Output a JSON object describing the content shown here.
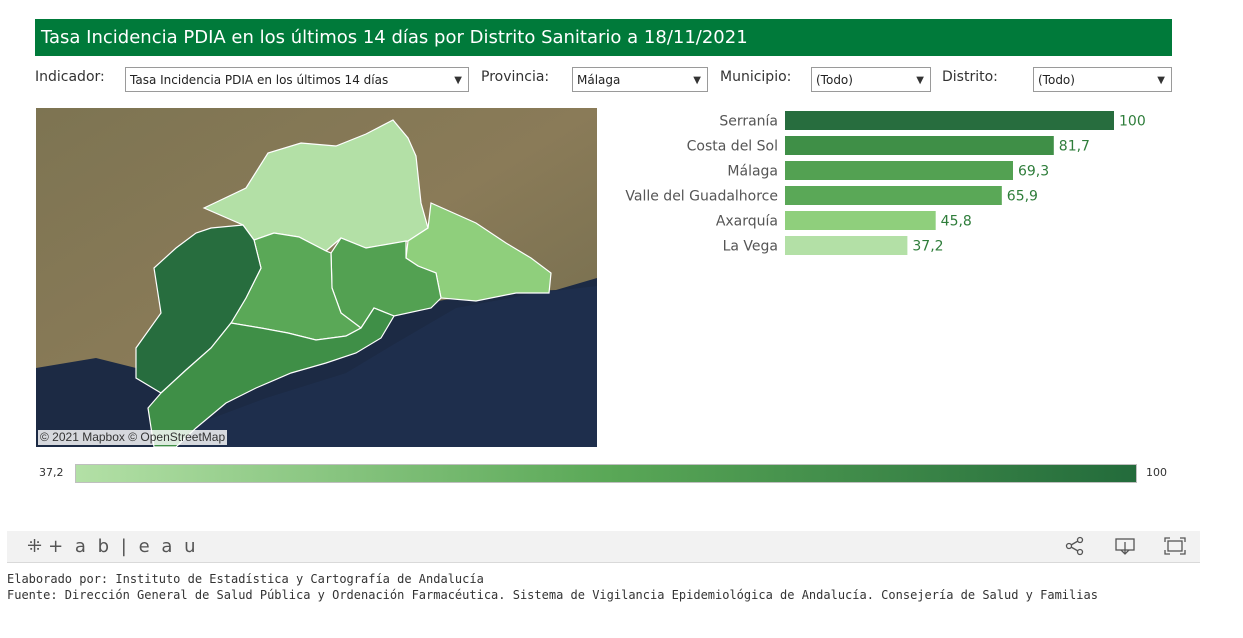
{
  "header": {
    "title": "Tasa Incidencia PDIA en los últimos 14 días por Distrito Sanitario a 18/11/2021"
  },
  "filters": {
    "indicador_label": "Indicador:",
    "indicador_value": "Tasa Incidencia PDIA en los últimos 14 días",
    "provincia_label": "Provincia:",
    "provincia_value": "Málaga",
    "municipio_label": "Municipio:",
    "municipio_value": "(Todo)",
    "distrito_label": "Distrito:",
    "distrito_value": "(Todo)"
  },
  "map": {
    "attribution": "© 2021 Mapbox © OpenStreetMap"
  },
  "chart_data": {
    "type": "bar",
    "orientation": "horizontal",
    "categories": [
      "Serranía",
      "Costa del Sol",
      "Málaga",
      "Valle del Guadalhorce",
      "Axarquía",
      "La Vega"
    ],
    "values": [
      100,
      81.7,
      69.3,
      65.9,
      45.8,
      37.2
    ],
    "labels": [
      "100",
      "81,7",
      "69,3",
      "65,9",
      "45,8",
      "37,2"
    ],
    "colors": [
      "#276d3e",
      "#3f8f47",
      "#53a152",
      "#5aa857",
      "#8fcf7c",
      "#b3e0a6"
    ],
    "xlim": [
      0,
      100
    ]
  },
  "legend": {
    "min_label": "37,2",
    "max_label": "100",
    "min_color": "#b3e0a6",
    "max_color": "#236b3b"
  },
  "footer": {
    "brand": "+ a b | e a u",
    "share_icon": "share-icon",
    "download_icon": "download-icon",
    "fullscreen_icon": "fullscreen-icon",
    "credit_line1": "Elaborado por: Instituto de Estadística y Cartografía de Andalucía",
    "credit_line2": "Fuente: Dirección General de Salud Pública y Ordenación Farmacéutica. Sistema de Vigilancia Epidemiológica de Andalucía. Consejería de Salud y Familias"
  }
}
